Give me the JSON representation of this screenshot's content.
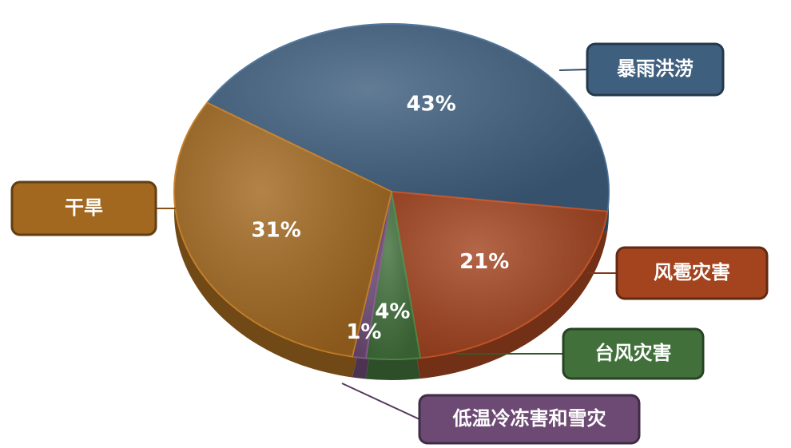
{
  "chart_data": {
    "type": "pie",
    "categories": [
      "暴雨洪涝",
      "风雹灾害",
      "台风灾害",
      "低温冷冻害和雪灾",
      "干旱"
    ],
    "values": [
      43,
      21,
      4,
      1,
      31
    ],
    "value_labels": [
      "43%",
      "21%",
      "4%",
      "1%",
      "31%"
    ],
    "colors": [
      "#3f5f7f",
      "#a3441f",
      "#41703b",
      "#6d4a74",
      "#a2681f"
    ]
  }
}
